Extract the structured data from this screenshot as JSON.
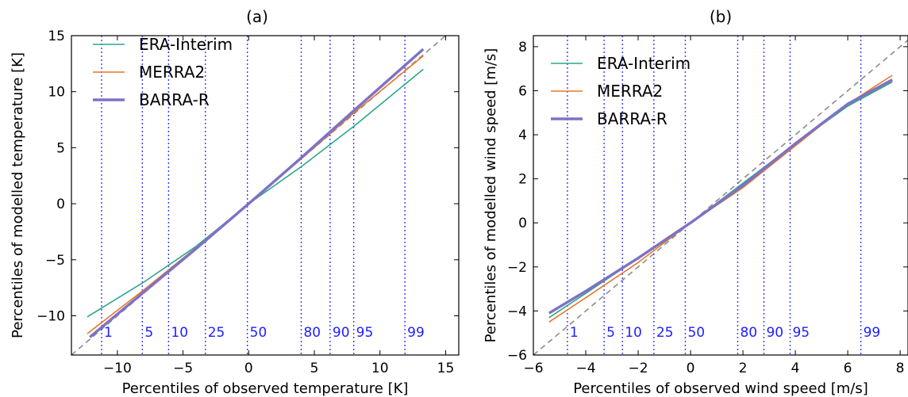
{
  "chart_data": [
    {
      "type": "line",
      "panel_label": "(a)",
      "xlabel": "Percentiles of observed temperature [K]",
      "ylabel": "Percentiles of modelled temperature [K]",
      "xlim": [
        -13.5,
        16
      ],
      "ylim": [
        -13.5,
        15
      ],
      "xticks": [
        -10,
        -5,
        0,
        5,
        10,
        15
      ],
      "yticks": [
        -10,
        -5,
        0,
        5,
        10,
        15
      ],
      "xtick_labels": [
        "−10",
        "−5",
        "0",
        "5",
        "10",
        "15"
      ],
      "ytick_labels": [
        "−10",
        "−5",
        "0",
        "5",
        "10",
        "15"
      ],
      "legend_position": "upper-left",
      "reference_line": "1:1 dashed",
      "percentile_lines": {
        "labels": [
          "1",
          "5",
          "10",
          "25",
          "50",
          "80",
          "90",
          "95",
          "99"
        ],
        "x": [
          -11.2,
          -8.1,
          -6.1,
          -3.3,
          -0.1,
          4.0,
          6.2,
          8.0,
          11.9
        ]
      },
      "series": [
        {
          "name": "ERA-Interim",
          "color": "#2ca58d",
          "width": 1.6,
          "x": [
            -12.3,
            -8,
            -4,
            0,
            4,
            8,
            13.3
          ],
          "y": [
            -10.1,
            -7.0,
            -3.8,
            0,
            3.3,
            6.9,
            12.0
          ]
        },
        {
          "name": "MERRA2",
          "color": "#e6772e",
          "width": 1.6,
          "x": [
            -12.3,
            -8,
            -4,
            0,
            4,
            8,
            13.3
          ],
          "y": [
            -11.6,
            -7.7,
            -3.9,
            0,
            4.0,
            8.1,
            13.2
          ]
        },
        {
          "name": "BARRA-R",
          "color": "#7d72c4",
          "width": 3.4,
          "x": [
            -12.1,
            -8,
            -4,
            0,
            4,
            8,
            13.3
          ],
          "y": [
            -11.9,
            -7.9,
            -4.0,
            0,
            4.1,
            8.3,
            13.8
          ]
        }
      ]
    },
    {
      "type": "line",
      "panel_label": "(b)",
      "xlabel": "Percentiles of observed wind speed [m/s]",
      "ylabel": "Percentiles of modelled wind speed [m/s]",
      "xlim": [
        -6,
        8.3
      ],
      "ylim": [
        -6,
        8.5
      ],
      "xticks": [
        -6,
        -4,
        -2,
        0,
        2,
        4,
        6,
        8
      ],
      "yticks": [
        -6,
        -4,
        -2,
        0,
        2,
        4,
        6,
        8
      ],
      "xtick_labels": [
        "−6",
        "−4",
        "−2",
        "0",
        "2",
        "4",
        "6",
        "8"
      ],
      "ytick_labels": [
        "−6",
        "−4",
        "−2",
        "0",
        "2",
        "4",
        "6",
        "8"
      ],
      "legend_position": "upper-left",
      "reference_line": "1:1 dashed",
      "percentile_lines": {
        "labels": [
          "1",
          "5",
          "10",
          "25",
          "50",
          "80",
          "90",
          "95",
          "99"
        ],
        "x": [
          -4.7,
          -3.3,
          -2.6,
          -1.4,
          -0.2,
          1.8,
          2.8,
          3.8,
          6.5
        ]
      },
      "series": [
        {
          "name": "ERA-Interim",
          "color": "#2ca58d",
          "width": 1.6,
          "x": [
            -5.4,
            -4,
            -2,
            0,
            2,
            4,
            6,
            7.7
          ],
          "y": [
            -4.3,
            -3.2,
            -1.6,
            0,
            1.8,
            3.6,
            5.3,
            6.4
          ]
        },
        {
          "name": "MERRA2",
          "color": "#e6772e",
          "width": 1.6,
          "x": [
            -5.4,
            -4,
            -2,
            0,
            2,
            4,
            6,
            7.7
          ],
          "y": [
            -4.5,
            -3.4,
            -1.8,
            0,
            1.6,
            3.5,
            5.4,
            6.7
          ]
        },
        {
          "name": "BARRA-R",
          "color": "#7d72c4",
          "width": 3.4,
          "x": [
            -5.4,
            -4,
            -2,
            0,
            2,
            4,
            6,
            7.7
          ],
          "y": [
            -4.1,
            -3.1,
            -1.6,
            0,
            1.7,
            3.6,
            5.4,
            6.5
          ]
        }
      ]
    }
  ]
}
